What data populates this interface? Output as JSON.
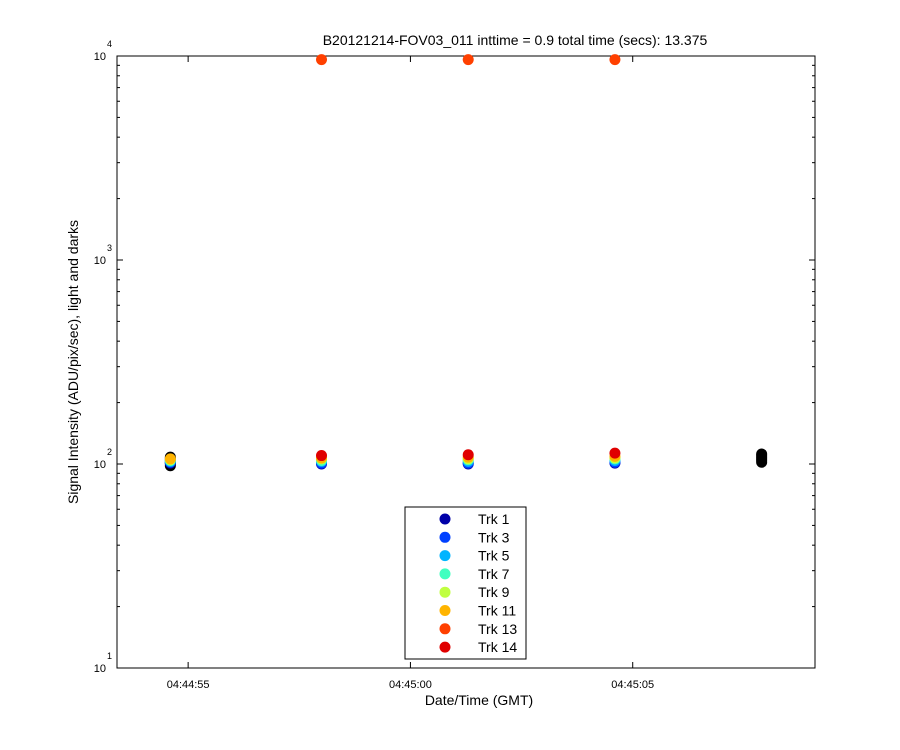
{
  "chart_data": {
    "type": "scatter",
    "title": "B20121214-FOV03_011 inttime = 0.9 total time (secs): 13.375",
    "xlabel": "Date/Time (GMT)",
    "ylabel": "Signal Intensity (ADU/pix/sec), light and darks",
    "y_scale": "log",
    "ylim": [
      10,
      10000
    ],
    "xlim": [
      "04:44:53.4",
      "04:45:09.1"
    ],
    "x_ticks": [
      "04:44:55",
      "04:45:00",
      "04:45:05"
    ],
    "y_ticks": [
      {
        "base": "10",
        "exp": "1"
      },
      {
        "base": "10",
        "exp": "2"
      },
      {
        "base": "10",
        "exp": "3"
      },
      {
        "base": "10",
        "exp": "4"
      }
    ],
    "grid": false,
    "legend_position": "bottom-center",
    "series": [
      {
        "name": "Trk 1",
        "color": "#0000a8",
        "points": [
          [
            "04:44:54.6",
            101
          ],
          [
            "04:44:58.0",
            100
          ],
          [
            "04:45:01.3",
            100
          ],
          [
            "04:45:04.6",
            101
          ]
        ]
      },
      {
        "name": "Trk 3",
        "color": "#0040ff",
        "points": [
          [
            "04:44:54.6",
            102
          ],
          [
            "04:44:58.0",
            101
          ],
          [
            "04:45:01.3",
            101
          ],
          [
            "04:45:04.6",
            102
          ]
        ]
      },
      {
        "name": "Trk 5",
        "color": "#00b4ff",
        "points": [
          [
            "04:44:54.6",
            103
          ],
          [
            "04:44:58.0",
            103
          ],
          [
            "04:45:01.3",
            103
          ],
          [
            "04:45:04.6",
            104
          ]
        ]
      },
      {
        "name": "Trk 7",
        "color": "#40ffc0",
        "points": [
          [
            "04:44:54.6",
            104
          ],
          [
            "04:44:58.0",
            104
          ],
          [
            "04:45:01.3",
            105
          ],
          [
            "04:45:04.6",
            106
          ]
        ]
      },
      {
        "name": "Trk 9",
        "color": "#c0ff40",
        "points": [
          [
            "04:44:54.6",
            105
          ],
          [
            "04:44:58.0",
            106
          ],
          [
            "04:45:01.3",
            106
          ],
          [
            "04:45:04.6",
            107
          ]
        ]
      },
      {
        "name": "Trk 11",
        "color": "#ffb400",
        "points": [
          [
            "04:44:54.6",
            106
          ],
          [
            "04:44:58.0",
            107
          ],
          [
            "04:45:01.3",
            108
          ],
          [
            "04:45:04.6",
            109
          ]
        ]
      },
      {
        "name": "Trk 13",
        "color": "#ff4000",
        "points": [
          [
            "04:44:58.0",
            9600
          ],
          [
            "04:45:01.3",
            9600
          ],
          [
            "04:45:04.6",
            9600
          ]
        ]
      },
      {
        "name": "Trk 14",
        "color": "#e00000",
        "points": [
          [
            "04:44:58.0",
            110
          ],
          [
            "04:45:01.3",
            111
          ],
          [
            "04:45:04.6",
            113
          ]
        ]
      }
    ],
    "dark_series": {
      "color": "#000000",
      "points": [
        [
          "04:44:54.6",
          98
        ],
        [
          "04:44:54.6",
          100
        ],
        [
          "04:44:54.6",
          102
        ],
        [
          "04:44:54.6",
          104
        ],
        [
          "04:44:54.6",
          106
        ],
        [
          "04:44:54.6",
          108
        ],
        [
          "04:45:07.9",
          102
        ],
        [
          "04:45:07.9",
          104
        ],
        [
          "04:45:07.9",
          106
        ],
        [
          "04:45:07.9",
          108
        ],
        [
          "04:45:07.9",
          110
        ],
        [
          "04:45:07.9",
          112
        ]
      ]
    }
  }
}
